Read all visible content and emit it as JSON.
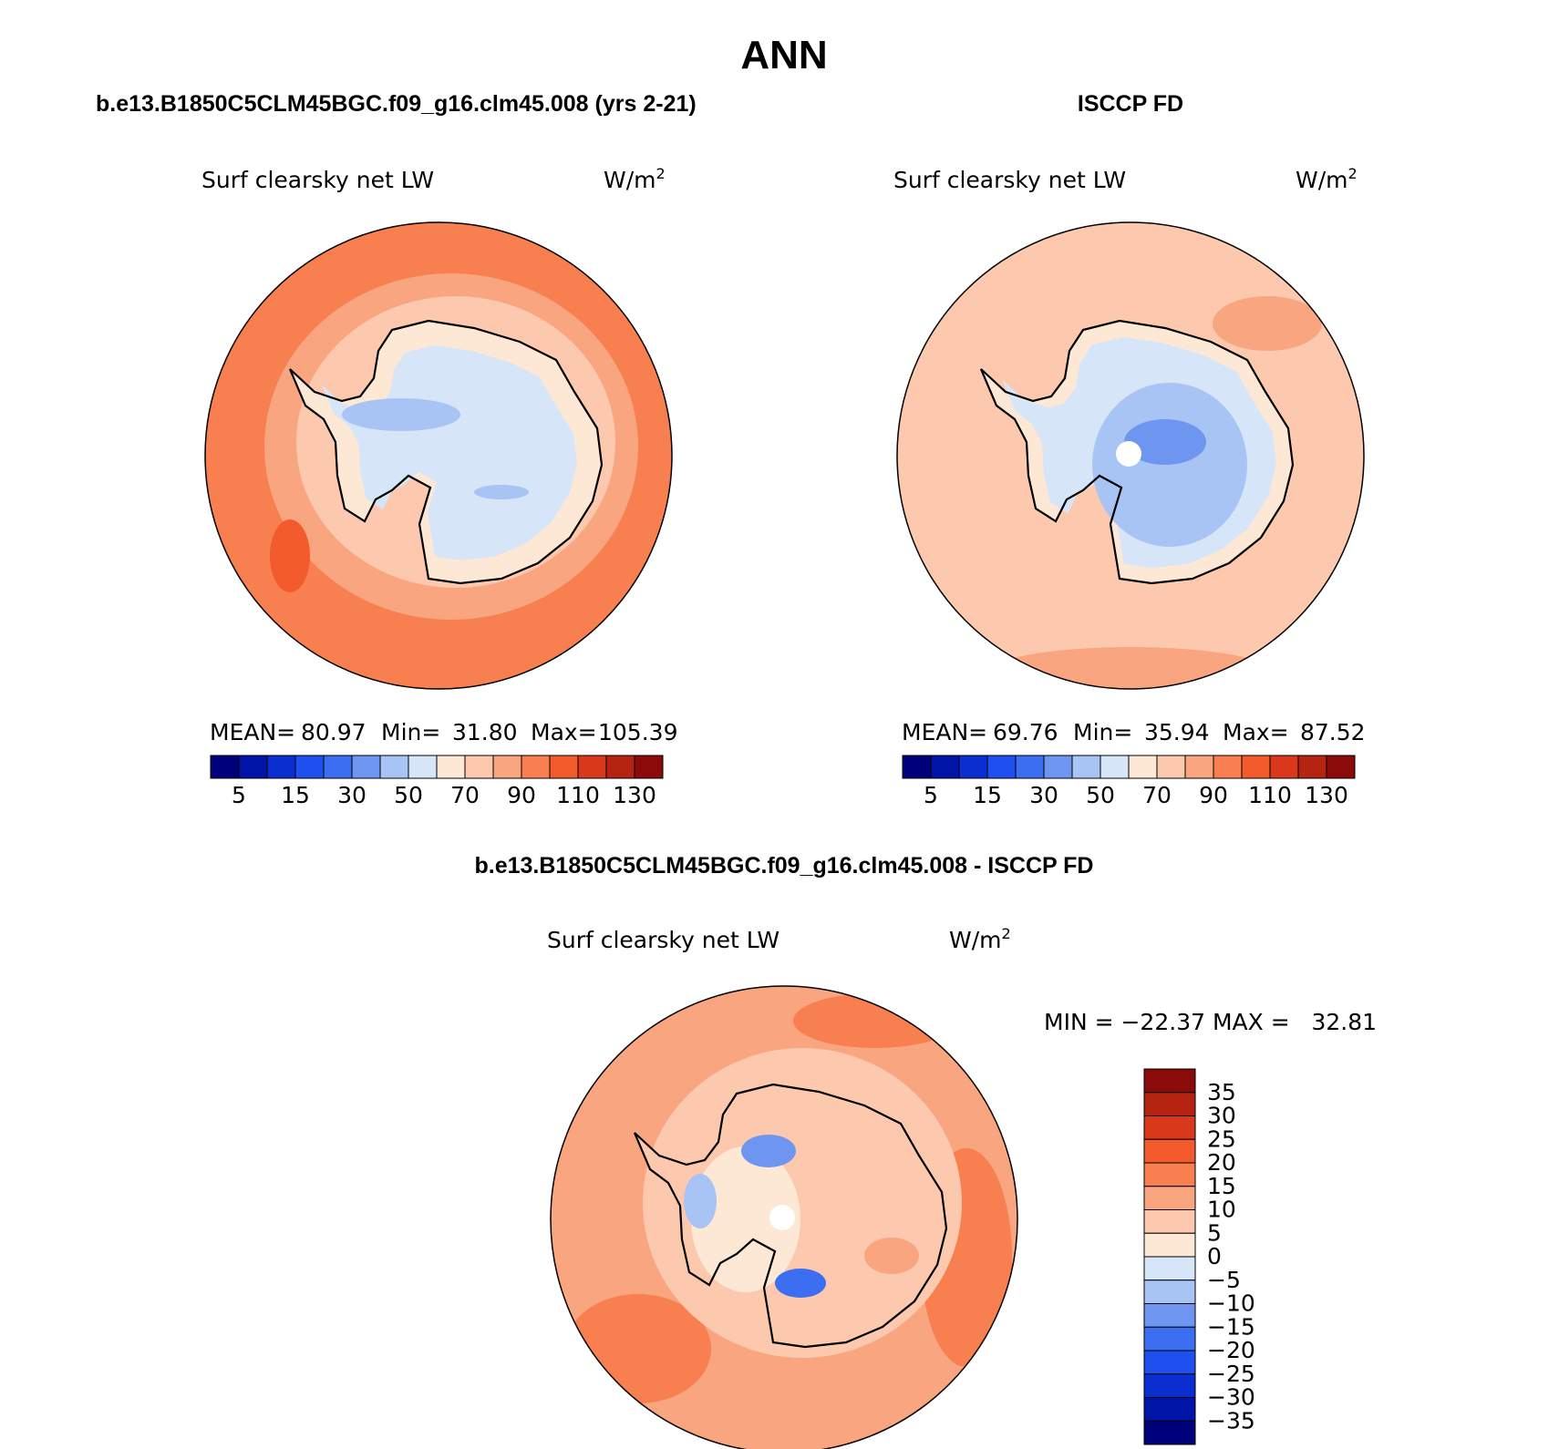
{
  "page_title": "ANN",
  "panels": [
    {
      "title": "b.e13.B1850C5CLM45BGC.f09_g16.clm45.008 (yrs 2-21)",
      "variable": "Surf clearsky net LW",
      "units": "W/m",
      "units_exp": "2",
      "stats": {
        "mean_label": "MEAN=",
        "mean": "80.97",
        "min_label": "Min=",
        "min": "31.80",
        "max_label": "Max=",
        "max": "105.39"
      }
    },
    {
      "title": "ISCCP FD",
      "variable": "Surf clearsky net LW",
      "units": "W/m",
      "units_exp": "2",
      "stats": {
        "mean_label": "MEAN=",
        "mean": "69.76",
        "min_label": "Min=",
        "min": "35.94",
        "max_label": "Max=",
        "max": "87.52"
      }
    },
    {
      "title": "b.e13.B1850C5CLM45BGC.f09_g16.clm45.008 - ISCCP FD",
      "variable": "Surf clearsky net LW",
      "units": "W/m",
      "units_exp": "2",
      "range_text": "MIN = −22.37 MAX =   32.81"
    }
  ],
  "abs_colorbar": {
    "colors": [
      "#00007a",
      "#0015a8",
      "#0a2ed0",
      "#1e50f0",
      "#3c6ef2",
      "#6e96f0",
      "#a8c4f5",
      "#d6e6f8",
      "#fde8d6",
      "#fcc8ae",
      "#f9a580",
      "#f77f50",
      "#f35a2c",
      "#d9381a",
      "#b52410",
      "#8b0a0a"
    ],
    "tick_labels": [
      "5",
      "15",
      "30",
      "50",
      "70",
      "90",
      "110",
      "130"
    ]
  },
  "diff_colorbar": {
    "colors_top_to_bottom": [
      "#8b0a0a",
      "#b52410",
      "#d9381a",
      "#f35a2c",
      "#f77f50",
      "#f9a580",
      "#fcc8ae",
      "#fde8d6",
      "#d6e6f8",
      "#a8c4f5",
      "#6e96f0",
      "#3c6ef2",
      "#1e50f0",
      "#0a2ed0",
      "#0015a8",
      "#00007a"
    ],
    "tick_labels_top_to_bottom": [
      "35",
      "30",
      "25",
      "20",
      "15",
      "10",
      "5",
      "0",
      "−5",
      "−10",
      "−15",
      "−20",
      "−25",
      "−30",
      "−35"
    ]
  },
  "colors": {
    "ocean_model": "#f77f50",
    "ocean_model_inner": "#f9a580",
    "ocean_obs": "#fcc8ae",
    "ice_light": "#d6e6f8",
    "ice_mid": "#a8c4f5",
    "ice_dark": "#6e96f0",
    "coast_light": "#fde8d6",
    "coastline": "#000000"
  }
}
